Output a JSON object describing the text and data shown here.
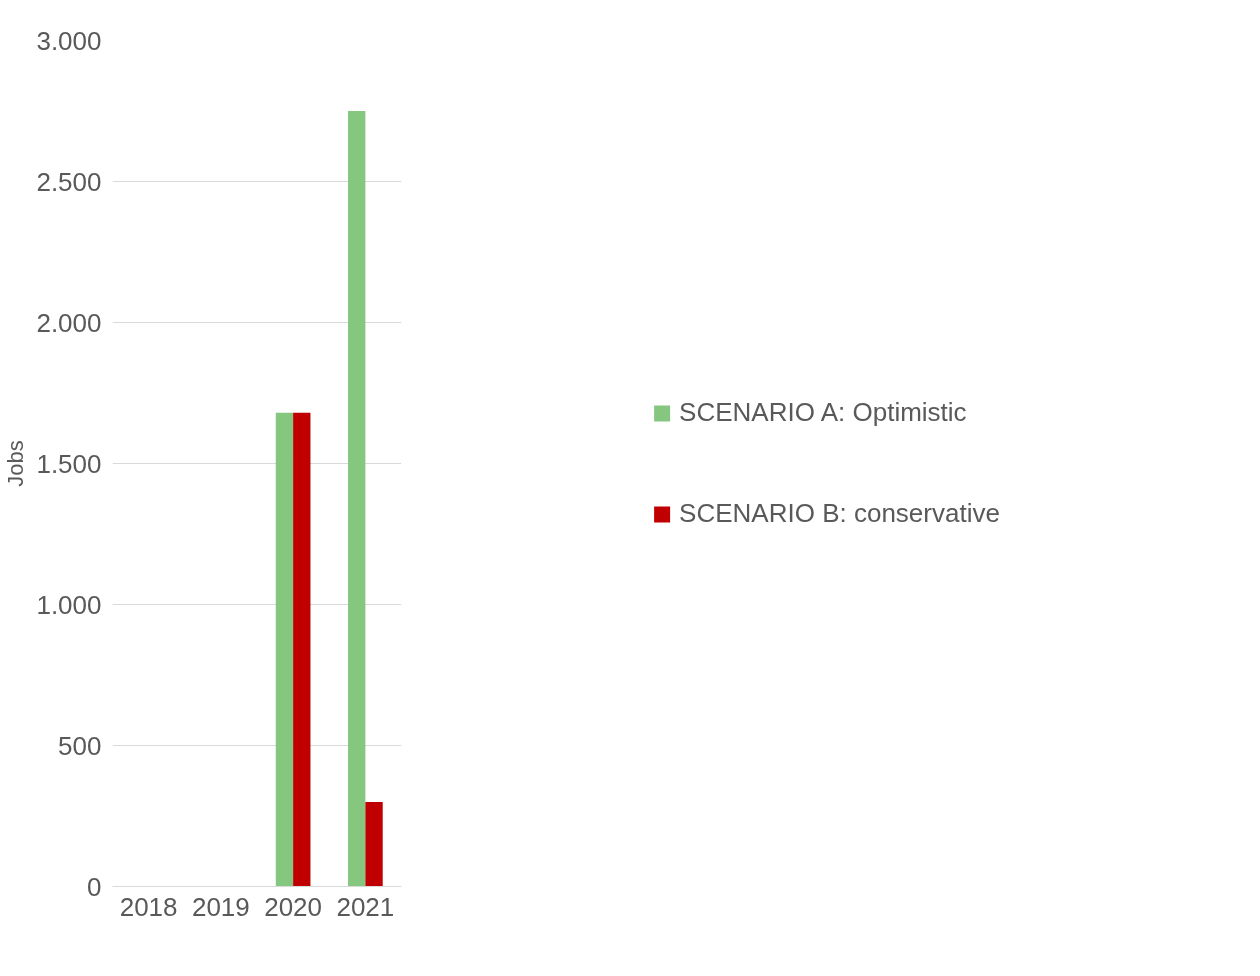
{
  "chart_data": {
    "type": "bar",
    "ylabel": "Jobs",
    "categories": [
      "2018",
      "2019",
      "2020",
      "2021"
    ],
    "series": [
      {
        "name": "SCENARIO A: Optimistic",
        "color": "#85c77f",
        "values": [
          0,
          0,
          1680,
          2750
        ]
      },
      {
        "name": "SCENARIO B: conservative",
        "color": "#c00000",
        "values": [
          0,
          0,
          1680,
          300
        ]
      }
    ],
    "ylim": [
      0,
      3000
    ],
    "yticks": [
      {
        "value": 0,
        "label": "0"
      },
      {
        "value": 500,
        "label": "500"
      },
      {
        "value": 1000,
        "label": "1.000"
      },
      {
        "value": 1500,
        "label": "1.500"
      },
      {
        "value": 2000,
        "label": "2.000"
      },
      {
        "value": 2500,
        "label": "2.500"
      },
      {
        "value": 3000,
        "label": "3.000"
      }
    ],
    "grid": "y",
    "legend": "right"
  }
}
